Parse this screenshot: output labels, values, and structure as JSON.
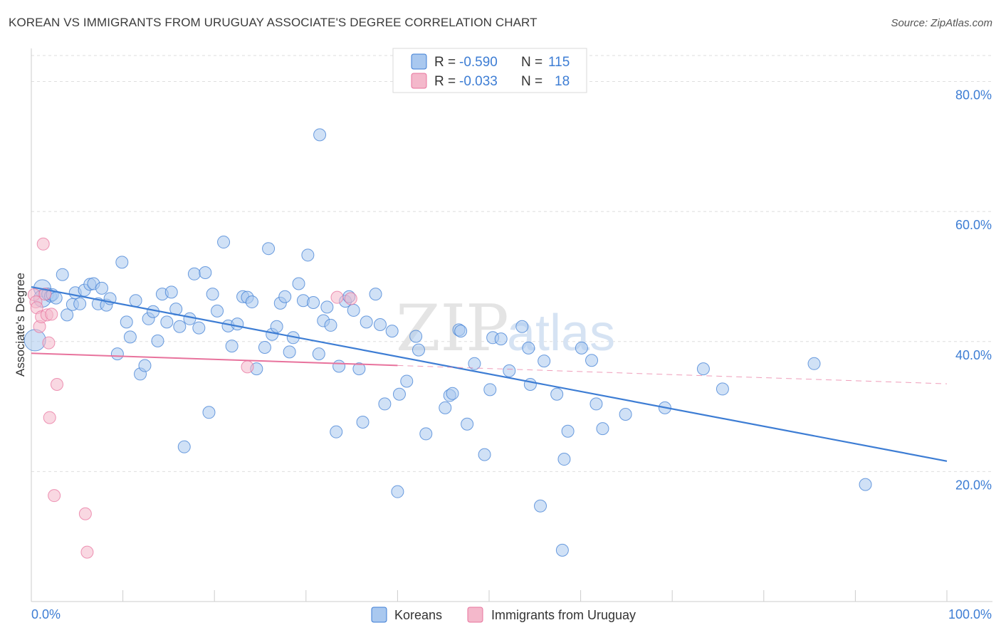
{
  "header": {
    "title": "KOREAN VS IMMIGRANTS FROM URUGUAY ASSOCIATE'S DEGREE CORRELATION CHART",
    "source": "Source: ZipAtlas.com"
  },
  "legend_top": {
    "rows": [
      {
        "r_label": "R =",
        "r_value": "-0.590",
        "n_label": "N =",
        "n_value": "115",
        "color": "#a9c8ef"
      },
      {
        "r_label": "R =",
        "r_value": "-0.033",
        "n_label": "N =",
        "n_value": "18",
        "color": "#f4b8cb"
      }
    ]
  },
  "watermark": {
    "zip": "ZIP",
    "atlas": "atlas"
  },
  "chart_data": {
    "type": "scatter",
    "title": "KOREAN VS IMMIGRANTS FROM URUGUAY ASSOCIATE'S DEGREE CORRELATION CHART",
    "ylabel": "Associate's Degree",
    "xlabel": "",
    "x_tick_labels": [
      "0.0%",
      "100.0%"
    ],
    "y_tick_labels": [
      "20.0%",
      "40.0%",
      "60.0%",
      "80.0%"
    ],
    "y_ticks": [
      20,
      40,
      60,
      80
    ],
    "xlim": [
      0,
      100
    ],
    "ylim": [
      0,
      84
    ],
    "grid": true,
    "legend_position": "bottom",
    "series": [
      {
        "name": "Koreans",
        "color": "#3d7dd4",
        "fill": "#a9c8ef",
        "trend": {
          "x0": 0,
          "y0": 48.4,
          "x1": 100,
          "y1": 21.6,
          "solid_to": 100
        },
        "points": [
          [
            0.4,
            40.2
          ],
          [
            1.2,
            48.2
          ],
          [
            1.2,
            46.6
          ],
          [
            1.8,
            47.3
          ],
          [
            2.1,
            47.0
          ],
          [
            2.3,
            47.2
          ],
          [
            2.7,
            46.7
          ],
          [
            3.4,
            50.3
          ],
          [
            3.9,
            44.1
          ],
          [
            4.5,
            45.7
          ],
          [
            4.8,
            47.5
          ],
          [
            5.3,
            45.8
          ],
          [
            5.8,
            47.9
          ],
          [
            6.4,
            48.8
          ],
          [
            6.8,
            48.9
          ],
          [
            7.3,
            45.8
          ],
          [
            7.7,
            48.2
          ],
          [
            8.2,
            45.6
          ],
          [
            8.6,
            46.6
          ],
          [
            9.4,
            38.1
          ],
          [
            9.9,
            52.2
          ],
          [
            10.4,
            43.0
          ],
          [
            10.8,
            40.7
          ],
          [
            11.4,
            46.3
          ],
          [
            11.9,
            35.0
          ],
          [
            12.4,
            36.3
          ],
          [
            12.8,
            43.5
          ],
          [
            13.3,
            44.6
          ],
          [
            13.8,
            40.1
          ],
          [
            14.3,
            47.3
          ],
          [
            14.8,
            43.0
          ],
          [
            15.3,
            47.6
          ],
          [
            15.8,
            45.0
          ],
          [
            16.2,
            42.3
          ],
          [
            16.7,
            23.8
          ],
          [
            17.3,
            43.5
          ],
          [
            17.8,
            50.4
          ],
          [
            18.3,
            42.1
          ],
          [
            19.0,
            50.6
          ],
          [
            19.4,
            29.1
          ],
          [
            19.8,
            47.3
          ],
          [
            20.3,
            44.7
          ],
          [
            21.0,
            55.3
          ],
          [
            21.5,
            42.4
          ],
          [
            21.9,
            39.3
          ],
          [
            22.5,
            42.7
          ],
          [
            23.1,
            46.9
          ],
          [
            23.6,
            46.8
          ],
          [
            24.1,
            46.1
          ],
          [
            24.6,
            35.8
          ],
          [
            25.5,
            39.1
          ],
          [
            25.9,
            54.3
          ],
          [
            26.3,
            41.1
          ],
          [
            26.8,
            42.3
          ],
          [
            27.2,
            45.9
          ],
          [
            27.7,
            46.9
          ],
          [
            28.2,
            38.4
          ],
          [
            28.6,
            40.6
          ],
          [
            29.2,
            48.9
          ],
          [
            29.7,
            46.3
          ],
          [
            30.2,
            53.3
          ],
          [
            30.8,
            46.0
          ],
          [
            31.4,
            38.1
          ],
          [
            31.5,
            71.8
          ],
          [
            31.9,
            43.2
          ],
          [
            32.3,
            45.3
          ],
          [
            32.7,
            42.5
          ],
          [
            33.3,
            26.1
          ],
          [
            33.6,
            36.2
          ],
          [
            34.3,
            46.2
          ],
          [
            34.7,
            46.9
          ],
          [
            35.2,
            44.8
          ],
          [
            35.8,
            35.8
          ],
          [
            36.2,
            27.6
          ],
          [
            36.6,
            43.0
          ],
          [
            37.6,
            47.3
          ],
          [
            38.1,
            42.6
          ],
          [
            38.6,
            30.4
          ],
          [
            39.4,
            41.6
          ],
          [
            40.0,
            16.9
          ],
          [
            40.2,
            31.9
          ],
          [
            41.0,
            33.9
          ],
          [
            42.0,
            40.8
          ],
          [
            42.3,
            38.7
          ],
          [
            43.1,
            25.8
          ],
          [
            45.2,
            29.8
          ],
          [
            45.7,
            31.7
          ],
          [
            46.0,
            32.0
          ],
          [
            46.7,
            41.8
          ],
          [
            46.9,
            41.6
          ],
          [
            47.6,
            27.3
          ],
          [
            48.4,
            36.6
          ],
          [
            49.5,
            22.6
          ],
          [
            50.1,
            32.6
          ],
          [
            50.4,
            40.6
          ],
          [
            51.3,
            40.4
          ],
          [
            52.2,
            35.5
          ],
          [
            53.6,
            42.3
          ],
          [
            54.3,
            39.0
          ],
          [
            54.5,
            33.4
          ],
          [
            55.6,
            14.7
          ],
          [
            56.0,
            37.0
          ],
          [
            57.4,
            31.9
          ],
          [
            58.2,
            21.9
          ],
          [
            58.6,
            26.2
          ],
          [
            60.1,
            39.0
          ],
          [
            61.2,
            37.1
          ],
          [
            61.7,
            30.4
          ],
          [
            62.4,
            26.6
          ],
          [
            64.9,
            28.8
          ],
          [
            69.2,
            29.8
          ],
          [
            73.4,
            35.8
          ],
          [
            75.5,
            32.7
          ],
          [
            85.5,
            36.6
          ],
          [
            91.1,
            18.0
          ],
          [
            58.0,
            7.9
          ]
        ]
      },
      {
        "name": "Immigrants from Uruguay",
        "color": "#e8739d",
        "fill": "#f4b8cb",
        "trend": {
          "x0": 0,
          "y0": 38.2,
          "x1": 100,
          "y1": 33.5,
          "solid_to": 40
        },
        "points": [
          [
            0.3,
            47.2
          ],
          [
            0.5,
            46.1
          ],
          [
            0.6,
            45.2
          ],
          [
            0.9,
            42.3
          ],
          [
            1.1,
            43.8
          ],
          [
            1.3,
            55.0
          ],
          [
            1.5,
            47.3
          ],
          [
            1.7,
            44.1
          ],
          [
            1.9,
            39.8
          ],
          [
            2.0,
            28.3
          ],
          [
            2.2,
            44.2
          ],
          [
            2.5,
            16.3
          ],
          [
            2.8,
            33.4
          ],
          [
            5.9,
            13.5
          ],
          [
            6.1,
            7.6
          ],
          [
            23.6,
            36.1
          ],
          [
            34.9,
            46.6
          ],
          [
            33.4,
            46.8
          ]
        ]
      }
    ]
  },
  "legend_bottom": {
    "items": [
      {
        "label": "Koreans",
        "color": "#a9c8ef"
      },
      {
        "label": "Immigrants from Uruguay",
        "color": "#f4b8cb"
      }
    ]
  }
}
